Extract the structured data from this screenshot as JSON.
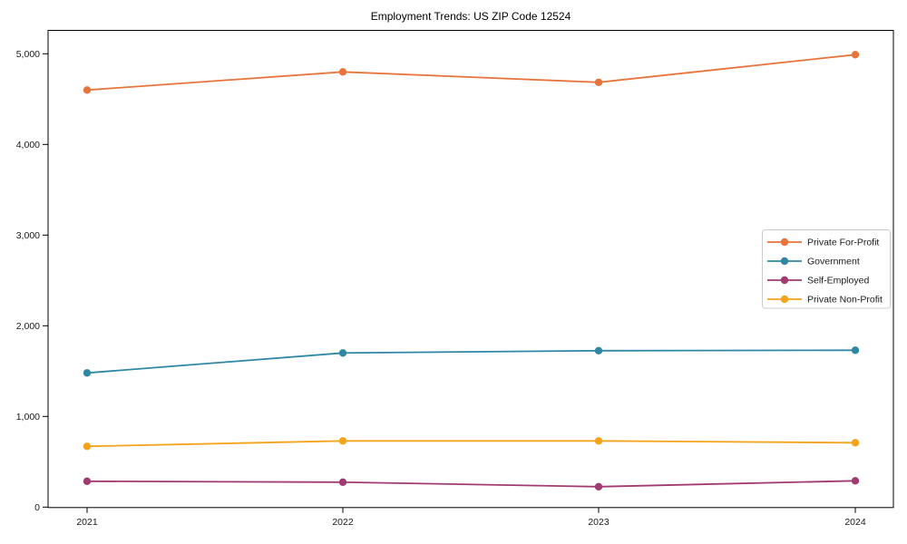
{
  "chart_data": {
    "type": "line",
    "title": "Employment Trends: US ZIP Code 12524",
    "x": [
      "2021",
      "2022",
      "2023",
      "2024"
    ],
    "series": [
      {
        "name": "Private For-Profit",
        "color": "#e8743b",
        "values": [
          4600,
          4800,
          4685,
          4990
        ]
      },
      {
        "name": "Government",
        "color": "#2e87a5",
        "values": [
          1480,
          1700,
          1725,
          1730
        ]
      },
      {
        "name": "Self-Employed",
        "color": "#a23a72",
        "values": [
          285,
          275,
          225,
          290
        ]
      },
      {
        "name": "Private Non-Profit",
        "color": "#f5a31b",
        "values": [
          670,
          730,
          730,
          710
        ]
      }
    ],
    "xlabel": "",
    "ylabel": "",
    "ylim": [
      0,
      5260
    ],
    "yticks": [
      0,
      1000,
      2000,
      3000,
      4000,
      5000
    ],
    "ytick_labels": [
      "0",
      "1,000",
      "2,000",
      "3,000",
      "4,000",
      "5,000"
    ],
    "grid": false,
    "marker": "circle",
    "legend": {
      "position": "right-center"
    }
  }
}
